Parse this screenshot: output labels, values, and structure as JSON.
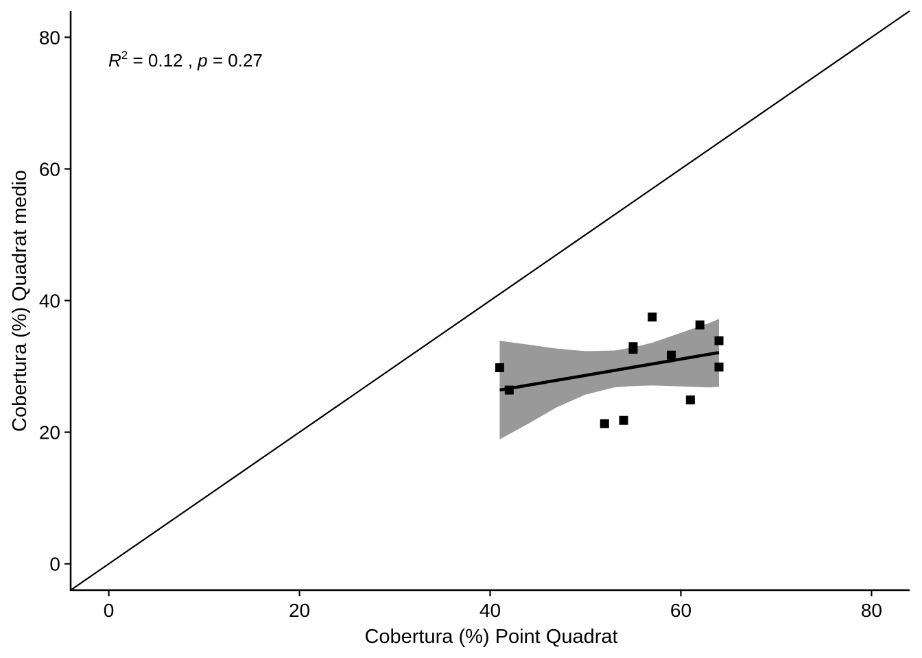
{
  "chart_data": {
    "type": "scatter",
    "title": "",
    "xlabel": "Cobertura (%) Point Quadrat",
    "ylabel": "Cobertura (%) Quadrat medio",
    "xlim": [
      -4,
      84
    ],
    "ylim": [
      -4,
      84
    ],
    "x_ticks": [
      0,
      20,
      40,
      60,
      80
    ],
    "y_ticks": [
      0,
      20,
      40,
      60,
      80
    ],
    "grid": false,
    "legend": "none",
    "annotation": {
      "r_symbol": "R",
      "r_exponent": "2",
      "r_value": " = 0.12 , ",
      "p_symbol": "p",
      "p_value": " = 0.27"
    },
    "series": [
      {
        "points": [
          {
            "x": 41,
            "y": 29.8
          },
          {
            "x": 42,
            "y": 26.4
          },
          {
            "x": 52,
            "y": 21.3
          },
          {
            "x": 54,
            "y": 21.8
          },
          {
            "x": 55,
            "y": 33.0
          },
          {
            "x": 55,
            "y": 32.6
          },
          {
            "x": 57,
            "y": 37.5
          },
          {
            "x": 59,
            "y": 31.7
          },
          {
            "x": 61,
            "y": 24.9
          },
          {
            "x": 62,
            "y": 36.3
          },
          {
            "x": 64,
            "y": 33.9
          },
          {
            "x": 64,
            "y": 29.9
          }
        ]
      }
    ],
    "identity_line": {
      "from": [
        -4,
        -4
      ],
      "to": [
        84,
        84
      ]
    },
    "fit_line": {
      "x": [
        41,
        64
      ],
      "y": [
        26.4,
        32.1
      ]
    },
    "confidence_band": {
      "x": [
        41,
        44,
        47,
        50,
        53,
        55,
        57,
        59,
        61,
        63,
        64
      ],
      "upper": [
        33.9,
        33.3,
        32.7,
        32.3,
        32.4,
        32.9,
        33.6,
        34.6,
        35.6,
        36.6,
        37.2
      ],
      "lower": [
        18.9,
        21.3,
        23.8,
        25.7,
        26.8,
        27.0,
        27.1,
        27.0,
        26.9,
        26.8,
        26.9
      ]
    },
    "colors": {
      "points": "#000000",
      "fit_line": "#000000",
      "band": "#999999",
      "axes": "#000000"
    }
  }
}
